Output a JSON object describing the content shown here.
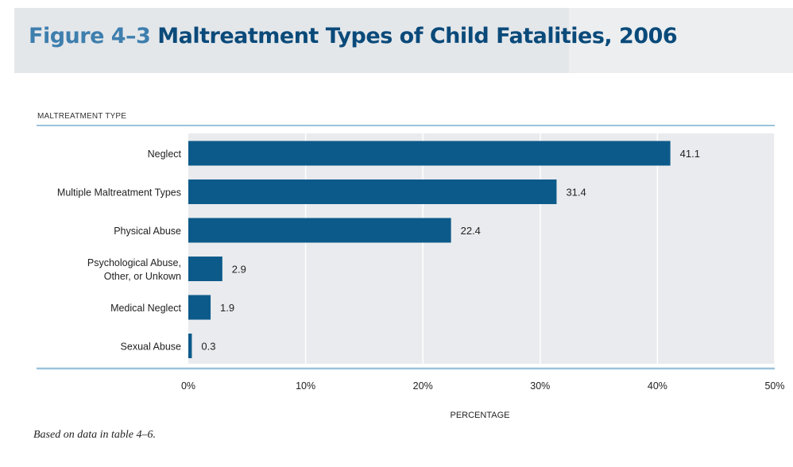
{
  "figure": {
    "number": "Figure 4–3",
    "title": "Maltreatment Types of Child Fatalities, 2006",
    "note": "Based on data in table 4–6."
  },
  "chart_data": {
    "type": "bar",
    "orientation": "horizontal",
    "categories": [
      "Neglect",
      "Multiple Maltreatment Types",
      "Physical Abuse",
      "Psychological Abuse, Other, or Unkown",
      "Medical Neglect",
      "Sexual Abuse"
    ],
    "category_lines": [
      [
        "Neglect"
      ],
      [
        "Multiple Maltreatment Types"
      ],
      [
        "Physical Abuse"
      ],
      [
        "Psychological Abuse,",
        "Other, or Unkown"
      ],
      [
        "Medical Neglect"
      ],
      [
        "Sexual Abuse"
      ]
    ],
    "values": [
      41.1,
      31.4,
      22.4,
      2.9,
      1.9,
      0.3
    ],
    "value_labels": [
      "41.1",
      "31.4",
      "22.4",
      "2.9",
      "1.9",
      "0.3"
    ],
    "ylabel": "MALTREATMENT TYPE",
    "xlabel": "PERCENTAGE",
    "xlim": [
      0,
      50
    ],
    "xticks": [
      0,
      10,
      20,
      30,
      40,
      50
    ],
    "xtick_labels": [
      "0%",
      "10%",
      "20%",
      "30%",
      "40%",
      "50%"
    ],
    "grid": true,
    "colors": {
      "bar": "#0c5a8a",
      "plot_bg": "#e9ebee",
      "grid": "#ffffff",
      "rule": "#9cc3dc"
    }
  }
}
